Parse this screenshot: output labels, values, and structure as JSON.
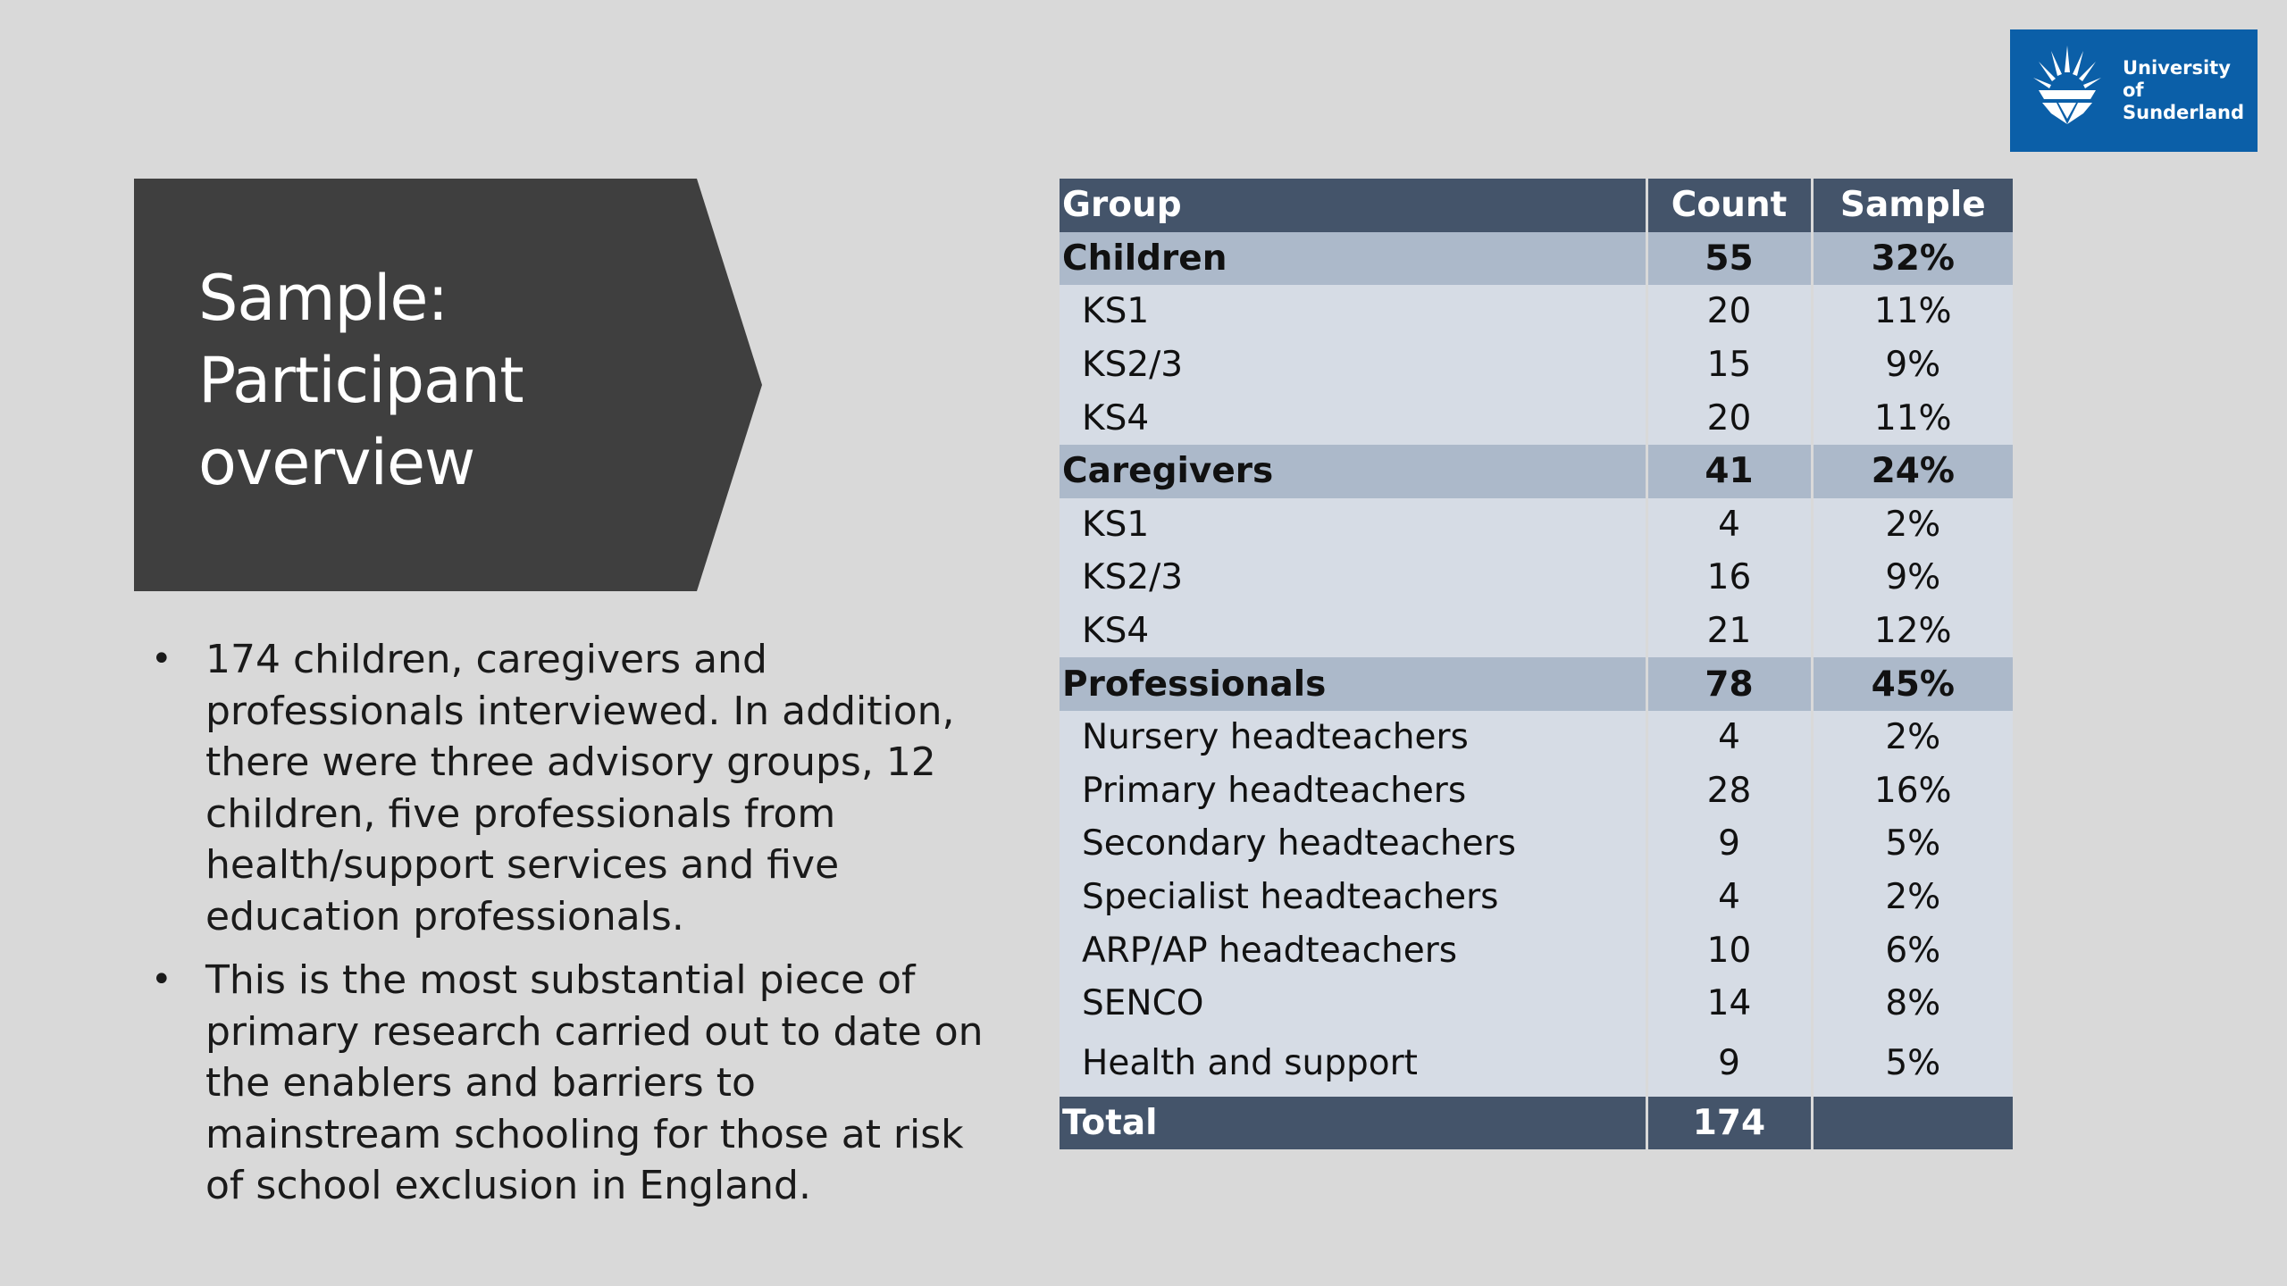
{
  "logo": {
    "line1": "University of",
    "line2": "Sunderland",
    "icon": "sunburst-shield-icon",
    "color": "#0b5fa8"
  },
  "title": {
    "line1": "Sample:",
    "line2": "Participant",
    "line3": "overview"
  },
  "bullets": [
    "174 children, caregivers and professionals interviewed. In addition, there were three advisory groups, 12 children, five professionals from health/support services and five education professionals.",
    "This is the most substantial piece of primary research carried out to date on the enablers and barriers to mainstream schooling for those at risk of school exclusion in England."
  ],
  "table": {
    "headers": [
      "Group",
      "Count",
      "Sample"
    ],
    "rows": [
      {
        "kind": "group",
        "name": "Children",
        "count": "55",
        "sample": "32%"
      },
      {
        "kind": "sub",
        "name": "KS1",
        "count": "20",
        "sample": "11%"
      },
      {
        "kind": "sub",
        "name": "KS2/3",
        "count": "15",
        "sample": "9%"
      },
      {
        "kind": "sub",
        "name": "KS4",
        "count": "20",
        "sample": "11%"
      },
      {
        "kind": "group",
        "name": "Caregivers",
        "count": "41",
        "sample": "24%"
      },
      {
        "kind": "sub",
        "name": "KS1",
        "count": "4",
        "sample": "2%"
      },
      {
        "kind": "sub",
        "name": "KS2/3",
        "count": "16",
        "sample": "9%"
      },
      {
        "kind": "sub",
        "name": "KS4",
        "count": "21",
        "sample": "12%"
      },
      {
        "kind": "group",
        "name": "Professionals",
        "count": "78",
        "sample": "45%"
      },
      {
        "kind": "sub",
        "name": "Nursery headteachers",
        "count": "4",
        "sample": "2%"
      },
      {
        "kind": "sub",
        "name": "Primary headteachers",
        "count": "28",
        "sample": "16%"
      },
      {
        "kind": "sub",
        "name": "Secondary headteachers",
        "count": "9",
        "sample": "5%"
      },
      {
        "kind": "sub",
        "name": "Specialist headteachers",
        "count": "4",
        "sample": "2%"
      },
      {
        "kind": "sub",
        "name": "ARP/AP headteachers",
        "count": "10",
        "sample": "6%"
      },
      {
        "kind": "sub",
        "name": "SENCO",
        "count": "14",
        "sample": "8%"
      },
      {
        "kind": "sub",
        "name": "Health and support",
        "count": "9",
        "sample": "5%"
      }
    ],
    "total": {
      "name": "Total",
      "count": "174",
      "sample": ""
    }
  },
  "colors": {
    "background": "#d9d9d9",
    "title_box": "#3f3f3f",
    "table_header": "#44546a",
    "group_row": "#acb9ca",
    "sub_row": "#d6dce5"
  }
}
